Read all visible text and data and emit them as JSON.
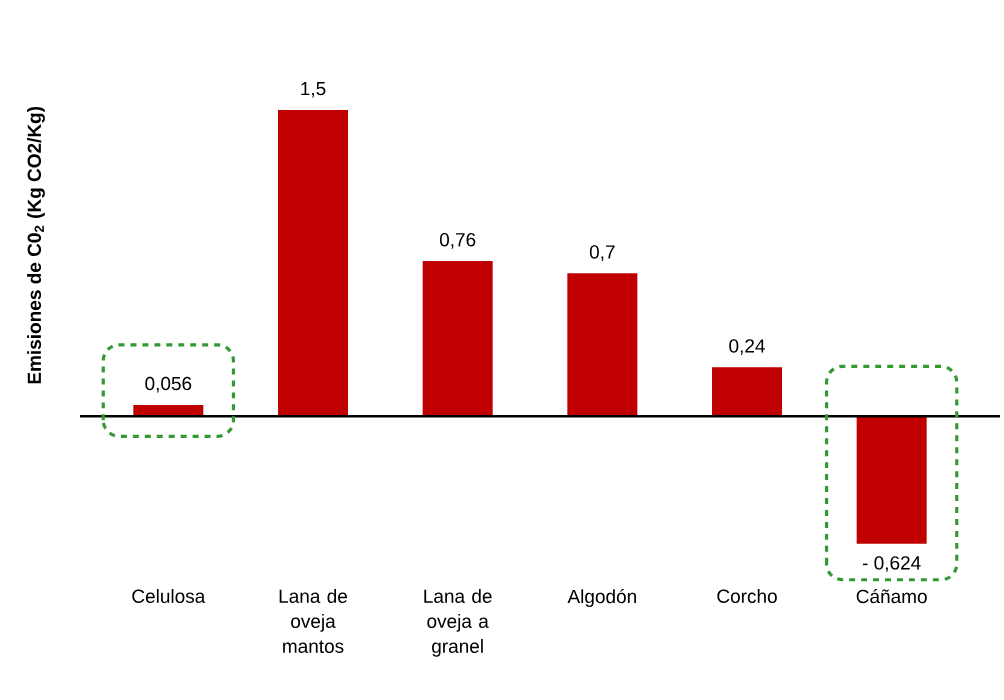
{
  "chart_data": {
    "type": "bar",
    "ylabel": "Emisiones de C0$_{2}$ (Kg CO2/Kg)",
    "categories": [
      "Celulosa",
      "Lana de oveja mantos",
      "Lana de oveja a granel",
      "Algodón",
      "Corcho",
      "Cáñamo"
    ],
    "values": [
      0.056,
      1.5,
      0.76,
      0.7,
      0.24,
      -0.624
    ],
    "value_labels": [
      "0,056",
      "1,5",
      "0,76",
      "0,7",
      "0,24",
      "- 0,624"
    ],
    "color": "#c00000"
  }
}
